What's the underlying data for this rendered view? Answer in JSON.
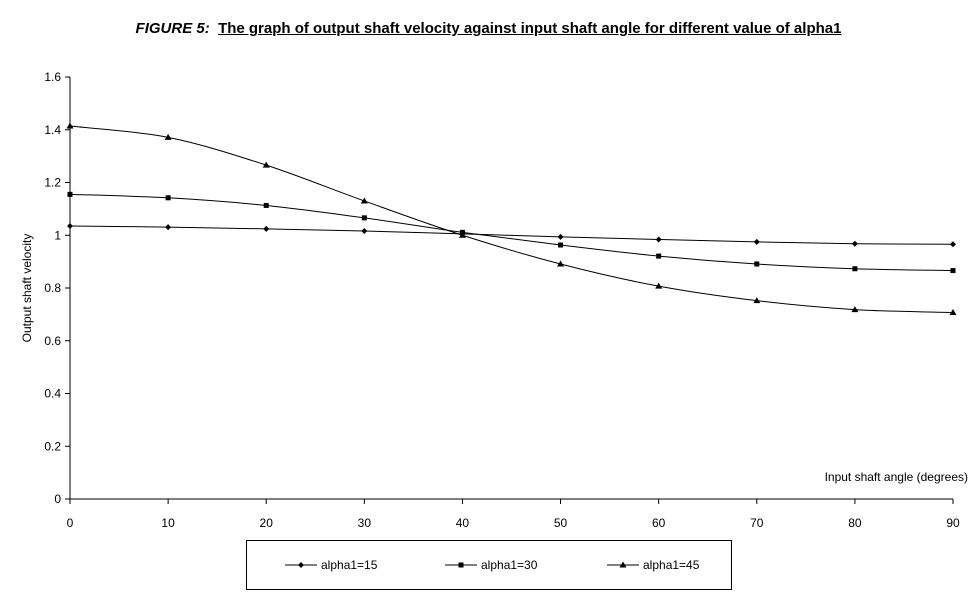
{
  "title": {
    "prefix": "FIGURE 5:",
    "text": "The graph of output shaft velocity against input shaft angle for different value of alpha1"
  },
  "chart_data": {
    "type": "line",
    "title": "FIGURE 5: The graph of output shaft velocity against input shaft angle for different value of alpha1",
    "xlabel": "Input shaft angle (degrees)",
    "ylabel": "Output shaft velocity",
    "x": [
      0,
      10,
      20,
      30,
      40,
      50,
      60,
      70,
      80,
      90
    ],
    "xlim": [
      0,
      90
    ],
    "ylim": [
      0,
      1.6
    ],
    "xticks": [
      0,
      10,
      20,
      30,
      40,
      50,
      60,
      70,
      80,
      90
    ],
    "yticks": [
      0,
      0.2,
      0.4,
      0.6,
      0.8,
      1,
      1.2,
      1.4,
      1.6
    ],
    "grid": false,
    "legend_position": "bottom",
    "series": [
      {
        "name": "alpha1=15",
        "marker": "diamond",
        "values": [
          1.035,
          1.031,
          1.024,
          1.016,
          1.005,
          0.994,
          0.984,
          0.975,
          0.968,
          0.966
        ]
      },
      {
        "name": "alpha1=30",
        "marker": "square",
        "values": [
          1.155,
          1.142,
          1.113,
          1.066,
          1.011,
          0.963,
          0.921,
          0.891,
          0.873,
          0.866
        ]
      },
      {
        "name": "alpha1=45",
        "marker": "triangle",
        "values": [
          1.414,
          1.371,
          1.266,
          1.13,
          1.0,
          0.891,
          0.807,
          0.752,
          0.718,
          0.707
        ]
      }
    ]
  }
}
